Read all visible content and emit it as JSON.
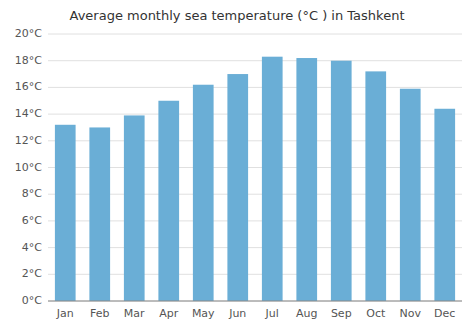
{
  "chart_data": {
    "type": "bar",
    "title": "Average monthly sea temperature (°C ) in Tashkent",
    "categories": [
      "Jan",
      "Feb",
      "Mar",
      "Apr",
      "May",
      "Jun",
      "Jul",
      "Aug",
      "Sep",
      "Oct",
      "Nov",
      "Dec"
    ],
    "values": [
      13.2,
      13.0,
      13.9,
      15.0,
      16.2,
      17.0,
      18.3,
      18.2,
      18.0,
      17.2,
      15.9,
      14.4
    ],
    "color": "#6aaed6",
    "ylim": [
      0,
      20
    ],
    "yticks": [
      {
        "value": 0,
        "label": "0°C"
      },
      {
        "value": 2,
        "label": "2°C"
      },
      {
        "value": 4,
        "label": "4°C"
      },
      {
        "value": 6,
        "label": "6°C"
      },
      {
        "value": 8,
        "label": "8°C"
      },
      {
        "value": 10,
        "label": "10°C"
      },
      {
        "value": 12,
        "label": "12°C"
      },
      {
        "value": 14,
        "label": "14°C"
      },
      {
        "value": 16,
        "label": "16°C"
      },
      {
        "value": 18,
        "label": "18°C"
      },
      {
        "value": 20,
        "label": "20°C"
      }
    ],
    "grid": true
  }
}
